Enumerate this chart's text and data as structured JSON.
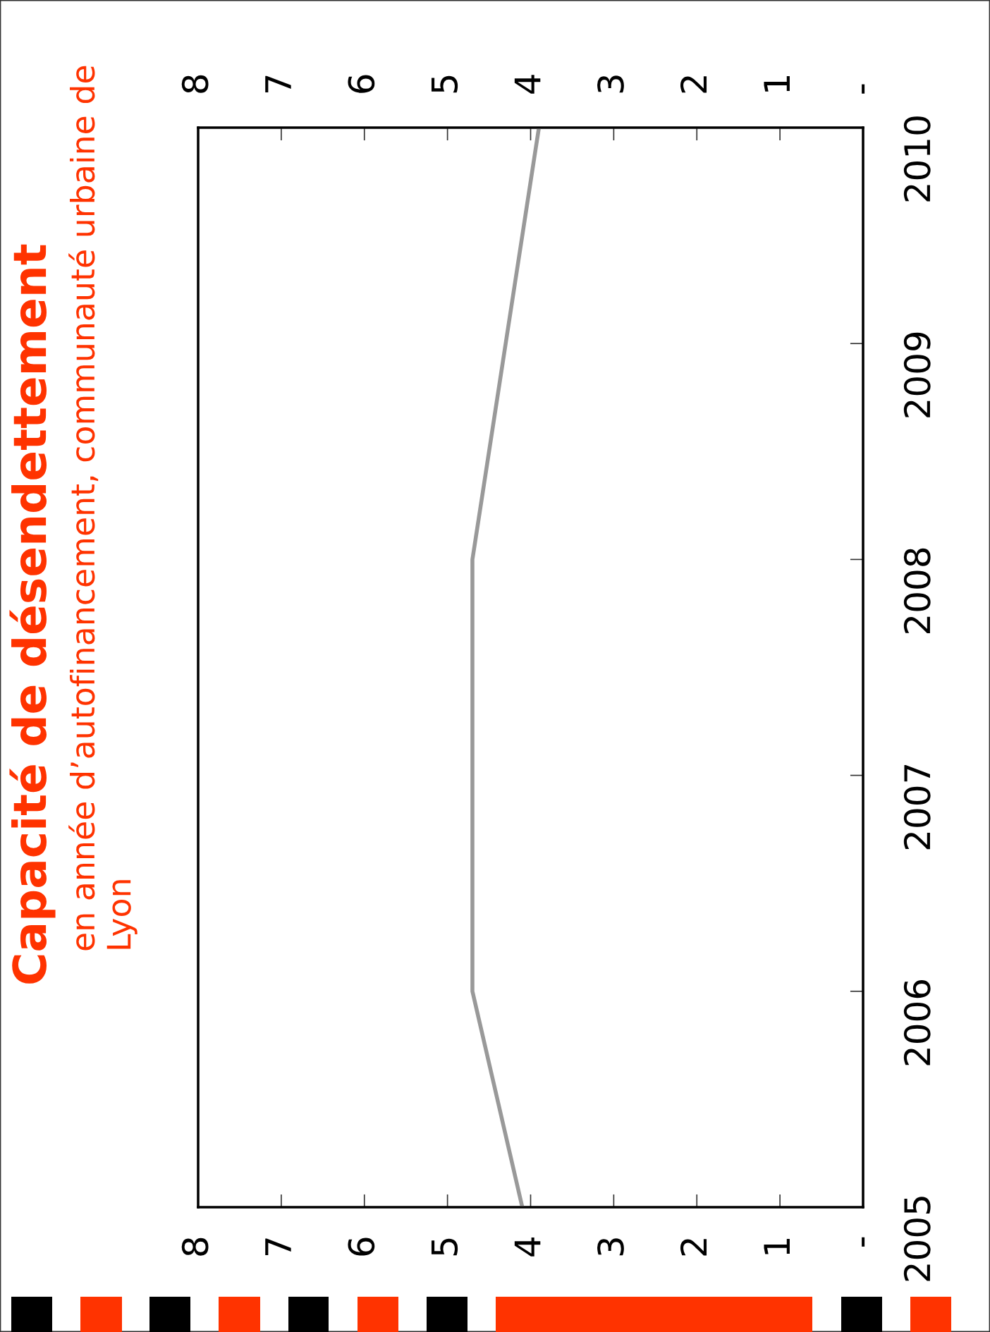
{
  "chart_data": {
    "type": "line",
    "orientation": "horizontal",
    "title": "Capacité de désendettement",
    "subtitle": "en année d’autofinancement, communauté urbaine de Lyon",
    "categories": [
      "2010",
      "2009",
      "2008",
      "2007",
      "2006",
      "2005"
    ],
    "values": [
      3.9,
      4.3,
      4.7,
      4.7,
      4.7,
      4.1
    ],
    "color": "#999999",
    "line_style": "solid",
    "xlim": [
      8,
      0
    ],
    "xticks": [
      8,
      7,
      6,
      5,
      4,
      3,
      2,
      1,
      {
        "value": 0,
        "label": "-"
      }
    ],
    "x2lim": [
      8,
      0
    ],
    "x2ticks": [
      8,
      7,
      6,
      5,
      4,
      3,
      2,
      1,
      {
        "value": 0,
        "label": "-"
      }
    ]
  }
}
